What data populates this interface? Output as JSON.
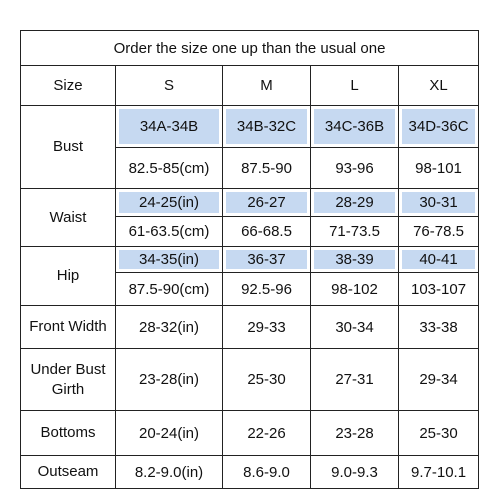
{
  "title": "Order the size one up than the usual one",
  "header": [
    "Size",
    "S",
    "M",
    "L",
    "XL"
  ],
  "rows": [
    {
      "label": "Bust",
      "lines": [
        [
          "34A-34B",
          "34B-32C",
          "34C-36B",
          "34D-36C"
        ],
        [
          "82.5-85(cm)",
          "87.5-90",
          "93-96",
          "98-101"
        ]
      ]
    },
    {
      "label": "Waist",
      "lines": [
        [
          "24-25(in)",
          "26-27",
          "28-29",
          "30-31"
        ],
        [
          "61-63.5(cm)",
          "66-68.5",
          "71-73.5",
          "76-78.5"
        ]
      ]
    },
    {
      "label": "Hip",
      "lines": [
        [
          "34-35(in)",
          "36-37",
          "38-39",
          "40-41"
        ],
        [
          "87.5-90(cm)",
          "92.5-96",
          "98-102",
          "103-107"
        ]
      ]
    },
    {
      "label": "Front Width",
      "lines": [
        [
          "28-32(in)",
          "29-33",
          "30-34",
          "33-38"
        ]
      ]
    },
    {
      "label": "Under Bust Girth",
      "lines": [
        [
          "23-28(in)",
          "25-30",
          "27-31",
          "29-34"
        ]
      ]
    },
    {
      "label": "Bottoms",
      "lines": [
        [
          "20-24(in)",
          "22-26",
          "23-28",
          "25-30"
        ]
      ]
    },
    {
      "label": "Outseam",
      "lines": [
        [
          "8.2-9.0(in)",
          "8.6-9.0",
          "9.0-9.3",
          "9.7-10.1"
        ]
      ]
    }
  ]
}
